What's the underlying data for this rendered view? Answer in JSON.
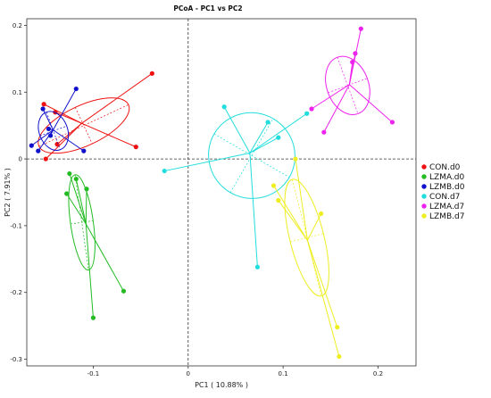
{
  "chart_data": {
    "type": "scatter",
    "title": "PCoA - PC1 vs PC2",
    "xlabel": "PC1 ( 10.88% )",
    "ylabel": "PC2 ( 7.91% )",
    "xlim": [
      -0.17,
      0.24
    ],
    "ylim": [
      -0.31,
      0.21
    ],
    "xticks": [
      "-0.1",
      "0",
      "0.1",
      "0.2"
    ],
    "xtick_values": [
      -0.1,
      0,
      0.1,
      0.2
    ],
    "yticks": [
      "0.2",
      "0.1",
      "0",
      "-0.1",
      "-0.2",
      "-0.3"
    ],
    "ytick_values": [
      0.2,
      0.1,
      0,
      -0.1,
      -0.2,
      -0.3
    ],
    "grid": false,
    "reference_lines": [
      "x=0",
      "y=0"
    ],
    "legend_position": "right",
    "series": [
      {
        "name": "CON.d0",
        "color": "#ee1111",
        "points": [
          [
            -0.152,
            0.082
          ],
          [
            -0.15,
            0.0
          ],
          [
            -0.14,
            0.07
          ],
          [
            -0.138,
            0.022
          ],
          [
            -0.055,
            0.018
          ],
          [
            -0.038,
            0.128
          ]
        ],
        "ellipse": {
          "cx": -0.11,
          "cy": 0.05,
          "rx": 0.052,
          "ry": 0.03,
          "angle_deg": 25
        }
      },
      {
        "name": "LZMA.d0",
        "color": "#22bb22",
        "points": [
          [
            -0.128,
            -0.052
          ],
          [
            -0.125,
            -0.022
          ],
          [
            -0.118,
            -0.03
          ],
          [
            -0.107,
            -0.045
          ],
          [
            -0.1,
            -0.238
          ],
          [
            -0.068,
            -0.198
          ]
        ],
        "ellipse": {
          "cx": -0.112,
          "cy": -0.095,
          "rx": 0.012,
          "ry": 0.072,
          "angle_deg": 8
        }
      },
      {
        "name": "LZMB.d0",
        "color": "#1111cc",
        "points": [
          [
            -0.165,
            0.02
          ],
          [
            -0.158,
            0.012
          ],
          [
            -0.153,
            0.075
          ],
          [
            -0.147,
            0.045
          ],
          [
            -0.145,
            0.035
          ],
          [
            -0.118,
            0.105
          ],
          [
            -0.11,
            0.012
          ]
        ],
        "ellipse": {
          "cx": -0.142,
          "cy": 0.042,
          "rx": 0.015,
          "ry": 0.03,
          "angle_deg": 20
        }
      },
      {
        "name": "CON.d7",
        "color": "#22dddd",
        "points": [
          [
            -0.025,
            -0.018
          ],
          [
            0.038,
            0.078
          ],
          [
            0.073,
            -0.162
          ],
          [
            0.084,
            0.055
          ],
          [
            0.095,
            0.032
          ],
          [
            0.125,
            0.068
          ]
        ],
        "ellipse": {
          "cx": 0.067,
          "cy": 0.005,
          "rx": 0.045,
          "ry": 0.065,
          "angle_deg": 60
        }
      },
      {
        "name": "LZMA.d7",
        "color": "#ee22ee",
        "points": [
          [
            0.13,
            0.075
          ],
          [
            0.143,
            0.04
          ],
          [
            0.173,
            0.145
          ],
          [
            0.176,
            0.158
          ],
          [
            0.182,
            0.195
          ],
          [
            0.215,
            0.055
          ]
        ],
        "ellipse": {
          "cx": 0.168,
          "cy": 0.11,
          "rx": 0.022,
          "ry": 0.045,
          "angle_deg": 20
        }
      },
      {
        "name": "LZMB.d7",
        "color": "#eeee22",
        "points": [
          [
            0.09,
            -0.04
          ],
          [
            0.095,
            -0.062
          ],
          [
            0.113,
            0.0
          ],
          [
            0.14,
            -0.082
          ],
          [
            0.157,
            -0.252
          ],
          [
            0.159,
            -0.296
          ]
        ],
        "ellipse": {
          "cx": 0.125,
          "cy": -0.118,
          "rx": 0.018,
          "ry": 0.09,
          "angle_deg": 14
        }
      }
    ]
  }
}
